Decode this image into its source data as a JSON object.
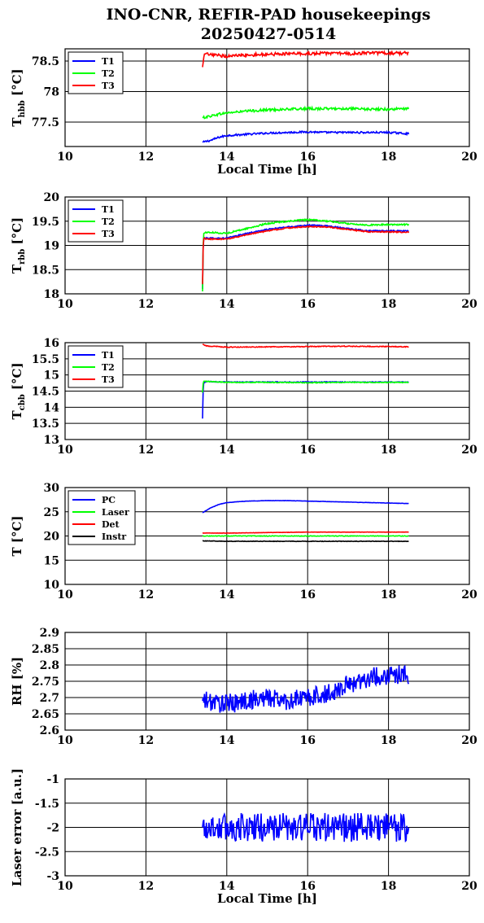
{
  "title_line1": "INO-CNR, REFIR-PAD housekeepings",
  "title_line2": "20250427-0514",
  "chart_data": [
    {
      "type": "line",
      "ylabel_main": "T",
      "ylabel_sub": "hbb",
      "ylabel_unit": " [°C]",
      "xlabel": "Local Time [h]",
      "xlim": [
        10,
        20
      ],
      "ylim": [
        77.1,
        78.7
      ],
      "xticks": [
        "10",
        "12",
        "14",
        "16",
        "18",
        "20"
      ],
      "yticks": [
        {
          "v": 77.5,
          "label": "77.5"
        },
        {
          "v": 78,
          "label": "78"
        },
        {
          "v": 78.5,
          "label": "78.5"
        }
      ],
      "grid": true,
      "legend": "top-left",
      "series": [
        {
          "name": "T1",
          "color": "#0000ff",
          "x": [
            13.4,
            13.6,
            13.8,
            14.0,
            14.5,
            15.0,
            15.5,
            16.0,
            16.5,
            17.0,
            17.5,
            18.0,
            18.5
          ],
          "y": [
            77.17,
            77.2,
            77.25,
            77.28,
            77.3,
            77.32,
            77.33,
            77.34,
            77.33,
            77.33,
            77.33,
            77.33,
            77.31
          ],
          "noise": 0.015
        },
        {
          "name": "T2",
          "color": "#00ff00",
          "x": [
            13.4,
            13.6,
            13.8,
            14.0,
            14.5,
            15.0,
            15.5,
            16.0,
            16.5,
            17.0,
            17.5,
            18.0,
            18.5
          ],
          "y": [
            77.57,
            77.6,
            77.63,
            77.65,
            77.68,
            77.7,
            77.71,
            77.72,
            77.72,
            77.72,
            77.71,
            77.71,
            77.72
          ],
          "noise": 0.02
        },
        {
          "name": "T3",
          "color": "#ff0000",
          "x": [
            13.4,
            13.45,
            13.6,
            14.0,
            14.5,
            15.0,
            15.5,
            16.0,
            16.5,
            17.0,
            17.5,
            18.0,
            18.5
          ],
          "y": [
            78.4,
            78.62,
            78.6,
            78.58,
            78.6,
            78.61,
            78.62,
            78.62,
            78.63,
            78.62,
            78.63,
            78.63,
            78.63
          ],
          "noise": 0.025
        }
      ]
    },
    {
      "type": "line",
      "ylabel_main": "T",
      "ylabel_sub": "rbb",
      "ylabel_unit": " [°C]",
      "xlabel": "",
      "xlim": [
        10,
        20
      ],
      "ylim": [
        18,
        20
      ],
      "xticks": [
        "10",
        "12",
        "14",
        "16",
        "18",
        "20"
      ],
      "yticks": [
        {
          "v": 18,
          "label": "18"
        },
        {
          "v": 18.5,
          "label": "18.5"
        },
        {
          "v": 19,
          "label": "19"
        },
        {
          "v": 19.5,
          "label": "19.5"
        },
        {
          "v": 20,
          "label": "20"
        }
      ],
      "grid": true,
      "legend": "top-left",
      "series": [
        {
          "name": "T1",
          "color": "#0000ff",
          "x": [
            13.4,
            13.42,
            13.5,
            14.0,
            14.5,
            15.0,
            15.5,
            16.0,
            16.5,
            17.0,
            17.5,
            18.0,
            18.5
          ],
          "y": [
            18.1,
            19.15,
            19.15,
            19.15,
            19.25,
            19.33,
            19.38,
            19.42,
            19.4,
            19.35,
            19.3,
            19.3,
            19.3
          ],
          "noise": 0.012
        },
        {
          "name": "T2",
          "color": "#00ff00",
          "x": [
            13.4,
            13.42,
            13.5,
            14.0,
            14.5,
            15.0,
            15.5,
            16.0,
            16.5,
            17.0,
            17.5,
            18.0,
            18.5
          ],
          "y": [
            18.05,
            19.25,
            19.27,
            19.25,
            19.35,
            19.45,
            19.5,
            19.53,
            19.5,
            19.45,
            19.42,
            19.43,
            19.43
          ],
          "noise": 0.015
        },
        {
          "name": "T3",
          "color": "#ff0000",
          "x": [
            13.4,
            13.42,
            13.5,
            14.0,
            14.5,
            15.0,
            15.5,
            16.0,
            16.5,
            17.0,
            17.5,
            18.0,
            18.5
          ],
          "y": [
            18.2,
            19.15,
            19.13,
            19.13,
            19.22,
            19.3,
            19.36,
            19.39,
            19.38,
            19.33,
            19.28,
            19.28,
            19.27
          ],
          "noise": 0.012
        }
      ]
    },
    {
      "type": "line",
      "ylabel_main": "T",
      "ylabel_sub": "cbb",
      "ylabel_unit": " [°C]",
      "xlabel": "",
      "xlim": [
        10,
        20
      ],
      "ylim": [
        13,
        16
      ],
      "xticks": [
        "10",
        "12",
        "14",
        "16",
        "18",
        "20"
      ],
      "yticks": [
        {
          "v": 13,
          "label": "13"
        },
        {
          "v": 13.5,
          "label": "13.5"
        },
        {
          "v": 14,
          "label": "14"
        },
        {
          "v": 14.5,
          "label": "14.5"
        },
        {
          "v": 15,
          "label": "15"
        },
        {
          "v": 15.5,
          "label": "15.5"
        },
        {
          "v": 16,
          "label": "16"
        }
      ],
      "grid": true,
      "legend": "top-left",
      "series": [
        {
          "name": "T1",
          "color": "#0000ff",
          "x": [
            13.4,
            13.42,
            13.5,
            14.0,
            15.0,
            16.0,
            17.0,
            18.0,
            18.5
          ],
          "y": [
            13.65,
            14.75,
            14.8,
            14.78,
            14.78,
            14.78,
            14.78,
            14.78,
            14.78
          ],
          "noise": 0.012
        },
        {
          "name": "T2",
          "color": "#00ff00",
          "x": [
            13.4,
            13.42,
            13.5,
            14.0,
            15.0,
            16.0,
            17.0,
            18.0,
            18.5
          ],
          "y": [
            14.45,
            14.8,
            14.8,
            14.77,
            14.77,
            14.76,
            14.77,
            14.77,
            14.77
          ],
          "noise": 0.012
        },
        {
          "name": "T3",
          "color": "#ff0000",
          "x": [
            13.4,
            13.5,
            14.0,
            15.0,
            16.0,
            17.0,
            18.0,
            18.5
          ],
          "y": [
            15.95,
            15.9,
            15.86,
            15.87,
            15.88,
            15.89,
            15.88,
            15.87
          ],
          "noise": 0.012
        }
      ]
    },
    {
      "type": "line",
      "ylabel_main": "T [°C]",
      "ylabel_sub": "",
      "ylabel_unit": "",
      "xlabel": "",
      "xlim": [
        10,
        20
      ],
      "ylim": [
        10,
        30
      ],
      "xticks": [
        "10",
        "12",
        "14",
        "16",
        "18",
        "20"
      ],
      "yticks": [
        {
          "v": 10,
          "label": "10"
        },
        {
          "v": 15,
          "label": "15"
        },
        {
          "v": 20,
          "label": "20"
        },
        {
          "v": 25,
          "label": "25"
        },
        {
          "v": 30,
          "label": "30"
        }
      ],
      "grid": true,
      "legend": "top-left",
      "series": [
        {
          "name": "PC",
          "color": "#0000ff",
          "x": [
            13.4,
            13.6,
            13.8,
            14.0,
            14.5,
            15.0,
            15.5,
            16.0,
            16.5,
            17.0,
            17.5,
            18.0,
            18.5
          ],
          "y": [
            24.8,
            25.8,
            26.5,
            26.9,
            27.2,
            27.3,
            27.3,
            27.2,
            27.1,
            27.0,
            26.9,
            26.8,
            26.7
          ],
          "noise": 0.03
        },
        {
          "name": "Laser",
          "color": "#00ff00",
          "x": [
            13.4,
            14.0,
            15.0,
            16.0,
            17.0,
            18.0,
            18.5
          ],
          "y": [
            20.0,
            20.0,
            20.0,
            20.0,
            20.0,
            20.0,
            20.0
          ],
          "noise": 0.06
        },
        {
          "name": "Det",
          "color": "#ff0000",
          "x": [
            13.4,
            14.0,
            15.0,
            16.0,
            17.0,
            18.0,
            18.5
          ],
          "y": [
            20.6,
            20.6,
            20.7,
            20.8,
            20.8,
            20.8,
            20.8
          ],
          "noise": 0.03
        },
        {
          "name": "Instr",
          "color": "#000000",
          "x": [
            13.4,
            14.0,
            15.0,
            16.0,
            17.0,
            18.0,
            18.5
          ],
          "y": [
            19.0,
            18.9,
            18.9,
            18.9,
            18.9,
            18.9,
            18.9
          ],
          "noise": 0.05
        }
      ]
    },
    {
      "type": "line",
      "ylabel_main": "RH [%]",
      "ylabel_sub": "",
      "ylabel_unit": "",
      "xlabel": "",
      "xlim": [
        10,
        20
      ],
      "ylim": [
        2.6,
        2.9
      ],
      "xticks": [
        "10",
        "12",
        "14",
        "16",
        "18",
        "20"
      ],
      "yticks": [
        {
          "v": 2.6,
          "label": "2.6"
        },
        {
          "v": 2.65,
          "label": "2.65"
        },
        {
          "v": 2.7,
          "label": "2.7"
        },
        {
          "v": 2.75,
          "label": "2.75"
        },
        {
          "v": 2.8,
          "label": "2.8"
        },
        {
          "v": 2.85,
          "label": "2.85"
        },
        {
          "v": 2.9,
          "label": "2.9"
        }
      ],
      "grid": true,
      "legend": "none",
      "series": [
        {
          "color": "#0000ff",
          "x": [
            13.4,
            14.0,
            14.5,
            15.0,
            15.5,
            16.0,
            16.5,
            17.0,
            17.5,
            18.0,
            18.5
          ],
          "y": [
            2.69,
            2.68,
            2.69,
            2.7,
            2.69,
            2.7,
            2.71,
            2.74,
            2.76,
            2.77,
            2.77
          ],
          "noise": 0.03
        }
      ]
    },
    {
      "type": "line",
      "ylabel_main": "Laser error [a.u.]",
      "ylabel_sub": "",
      "ylabel_unit": "",
      "xlabel": "Local Time [h]",
      "xlim": [
        10,
        20
      ],
      "ylim": [
        -3,
        -1
      ],
      "xticks": [
        "10",
        "12",
        "14",
        "16",
        "18",
        "20"
      ],
      "yticks": [
        {
          "v": -3,
          "label": "-3"
        },
        {
          "v": -2.5,
          "label": "-2.5"
        },
        {
          "v": -2,
          "label": "-2"
        },
        {
          "v": -1.5,
          "label": "-1.5"
        },
        {
          "v": -1,
          "label": "-1"
        }
      ],
      "grid": true,
      "legend": "none",
      "series": [
        {
          "color": "#0000ff",
          "x": [
            13.4,
            14.0,
            15.0,
            16.0,
            17.0,
            18.0,
            18.5
          ],
          "y": [
            -2.0,
            -2.0,
            -2.0,
            -2.0,
            -2.0,
            -2.0,
            -2.0
          ],
          "noise": 0.3
        }
      ]
    }
  ]
}
